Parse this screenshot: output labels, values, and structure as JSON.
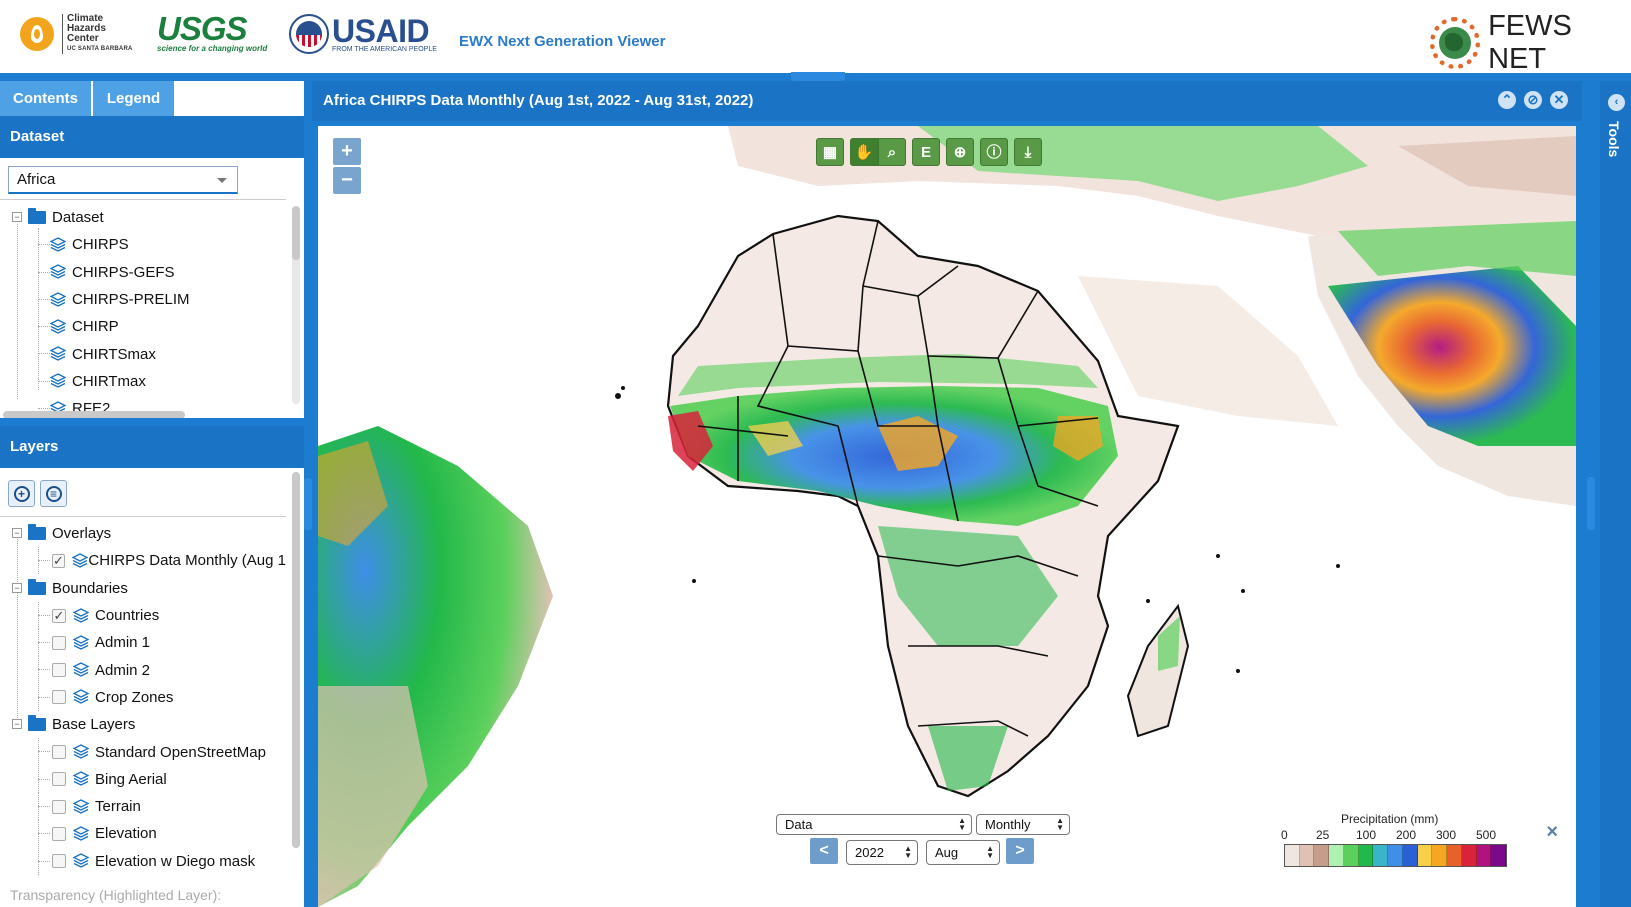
{
  "header": {
    "chc": {
      "line1": "Climate",
      "line2": "Hazards",
      "line3": "Center",
      "sub": "UC SANTA BARBARA"
    },
    "usgs": {
      "name": "USGS",
      "tagline": "science for a changing world"
    },
    "usaid": {
      "name": "USAID",
      "tagline": "FROM THE AMERICAN PEOPLE"
    },
    "app_title": "EWX Next Generation Viewer",
    "fews": "FEWS NET"
  },
  "tabs": {
    "contents": "Contents",
    "legend": "Legend"
  },
  "dataset_panel": {
    "heading": "Dataset",
    "region_select": "Africa",
    "folder": "Dataset",
    "items": [
      "CHIRPS",
      "CHIRPS-GEFS",
      "CHIRPS-PRELIM",
      "CHIRP",
      "CHIRTSmax",
      "CHIRTmax",
      "RFE2"
    ]
  },
  "layers_panel": {
    "heading": "Layers",
    "overlays": {
      "label": "Overlays",
      "items": [
        {
          "label": "CHIRPS Data Monthly (Aug 1",
          "checked": true
        }
      ]
    },
    "boundaries": {
      "label": "Boundaries",
      "items": [
        {
          "label": "Countries",
          "checked": true
        },
        {
          "label": "Admin 1",
          "checked": false
        },
        {
          "label": "Admin 2",
          "checked": false
        },
        {
          "label": "Crop Zones",
          "checked": false
        }
      ]
    },
    "base_layers": {
      "label": "Base Layers",
      "items": [
        {
          "label": "Standard OpenStreetMap",
          "checked": false
        },
        {
          "label": "Bing Aerial",
          "checked": false
        },
        {
          "label": "Terrain",
          "checked": false
        },
        {
          "label": "Elevation",
          "checked": false
        },
        {
          "label": "Elevation w Diego mask",
          "checked": false
        }
      ]
    },
    "transparency": "Transparency (Highlighted Layer):"
  },
  "map": {
    "title": "Africa CHIRPS Data Monthly (Aug 1st, 2022 - Aug 31st, 2022)",
    "zoom_in": "+",
    "zoom_out": "−",
    "toolbar": {
      "calendar": "calendar-icon",
      "pan": "hand-icon",
      "zoom_box": "zoom-select-icon",
      "e_label": "E",
      "zoom": "magnifier-icon",
      "info": "info-icon",
      "download": "download-icon"
    },
    "controls": {
      "data_select": "Data",
      "period_select": "Monthly",
      "year_select": "2022",
      "month_select": "Aug",
      "prev": "<",
      "next": ">"
    },
    "legend": {
      "title": "Precipitation (mm)",
      "ticks": [
        "0",
        "25",
        "100",
        "200",
        "300",
        "500"
      ],
      "colors": [
        "#f0e6e0",
        "#dfc2b4",
        "#c69d8b",
        "#b0f0b0",
        "#5cd05c",
        "#22b84a",
        "#3ab4c8",
        "#3f8ee8",
        "#2a5fd8",
        "#f7d04a",
        "#f5a623",
        "#e8602a",
        "#d8233a",
        "#b01280",
        "#7a0a8a"
      ]
    },
    "close": "×"
  },
  "tools": {
    "label": "Tools"
  },
  "colors": {
    "accent": "#1a73c4",
    "tab": "#4fa1e6",
    "map_btn": "#5a9a46"
  }
}
